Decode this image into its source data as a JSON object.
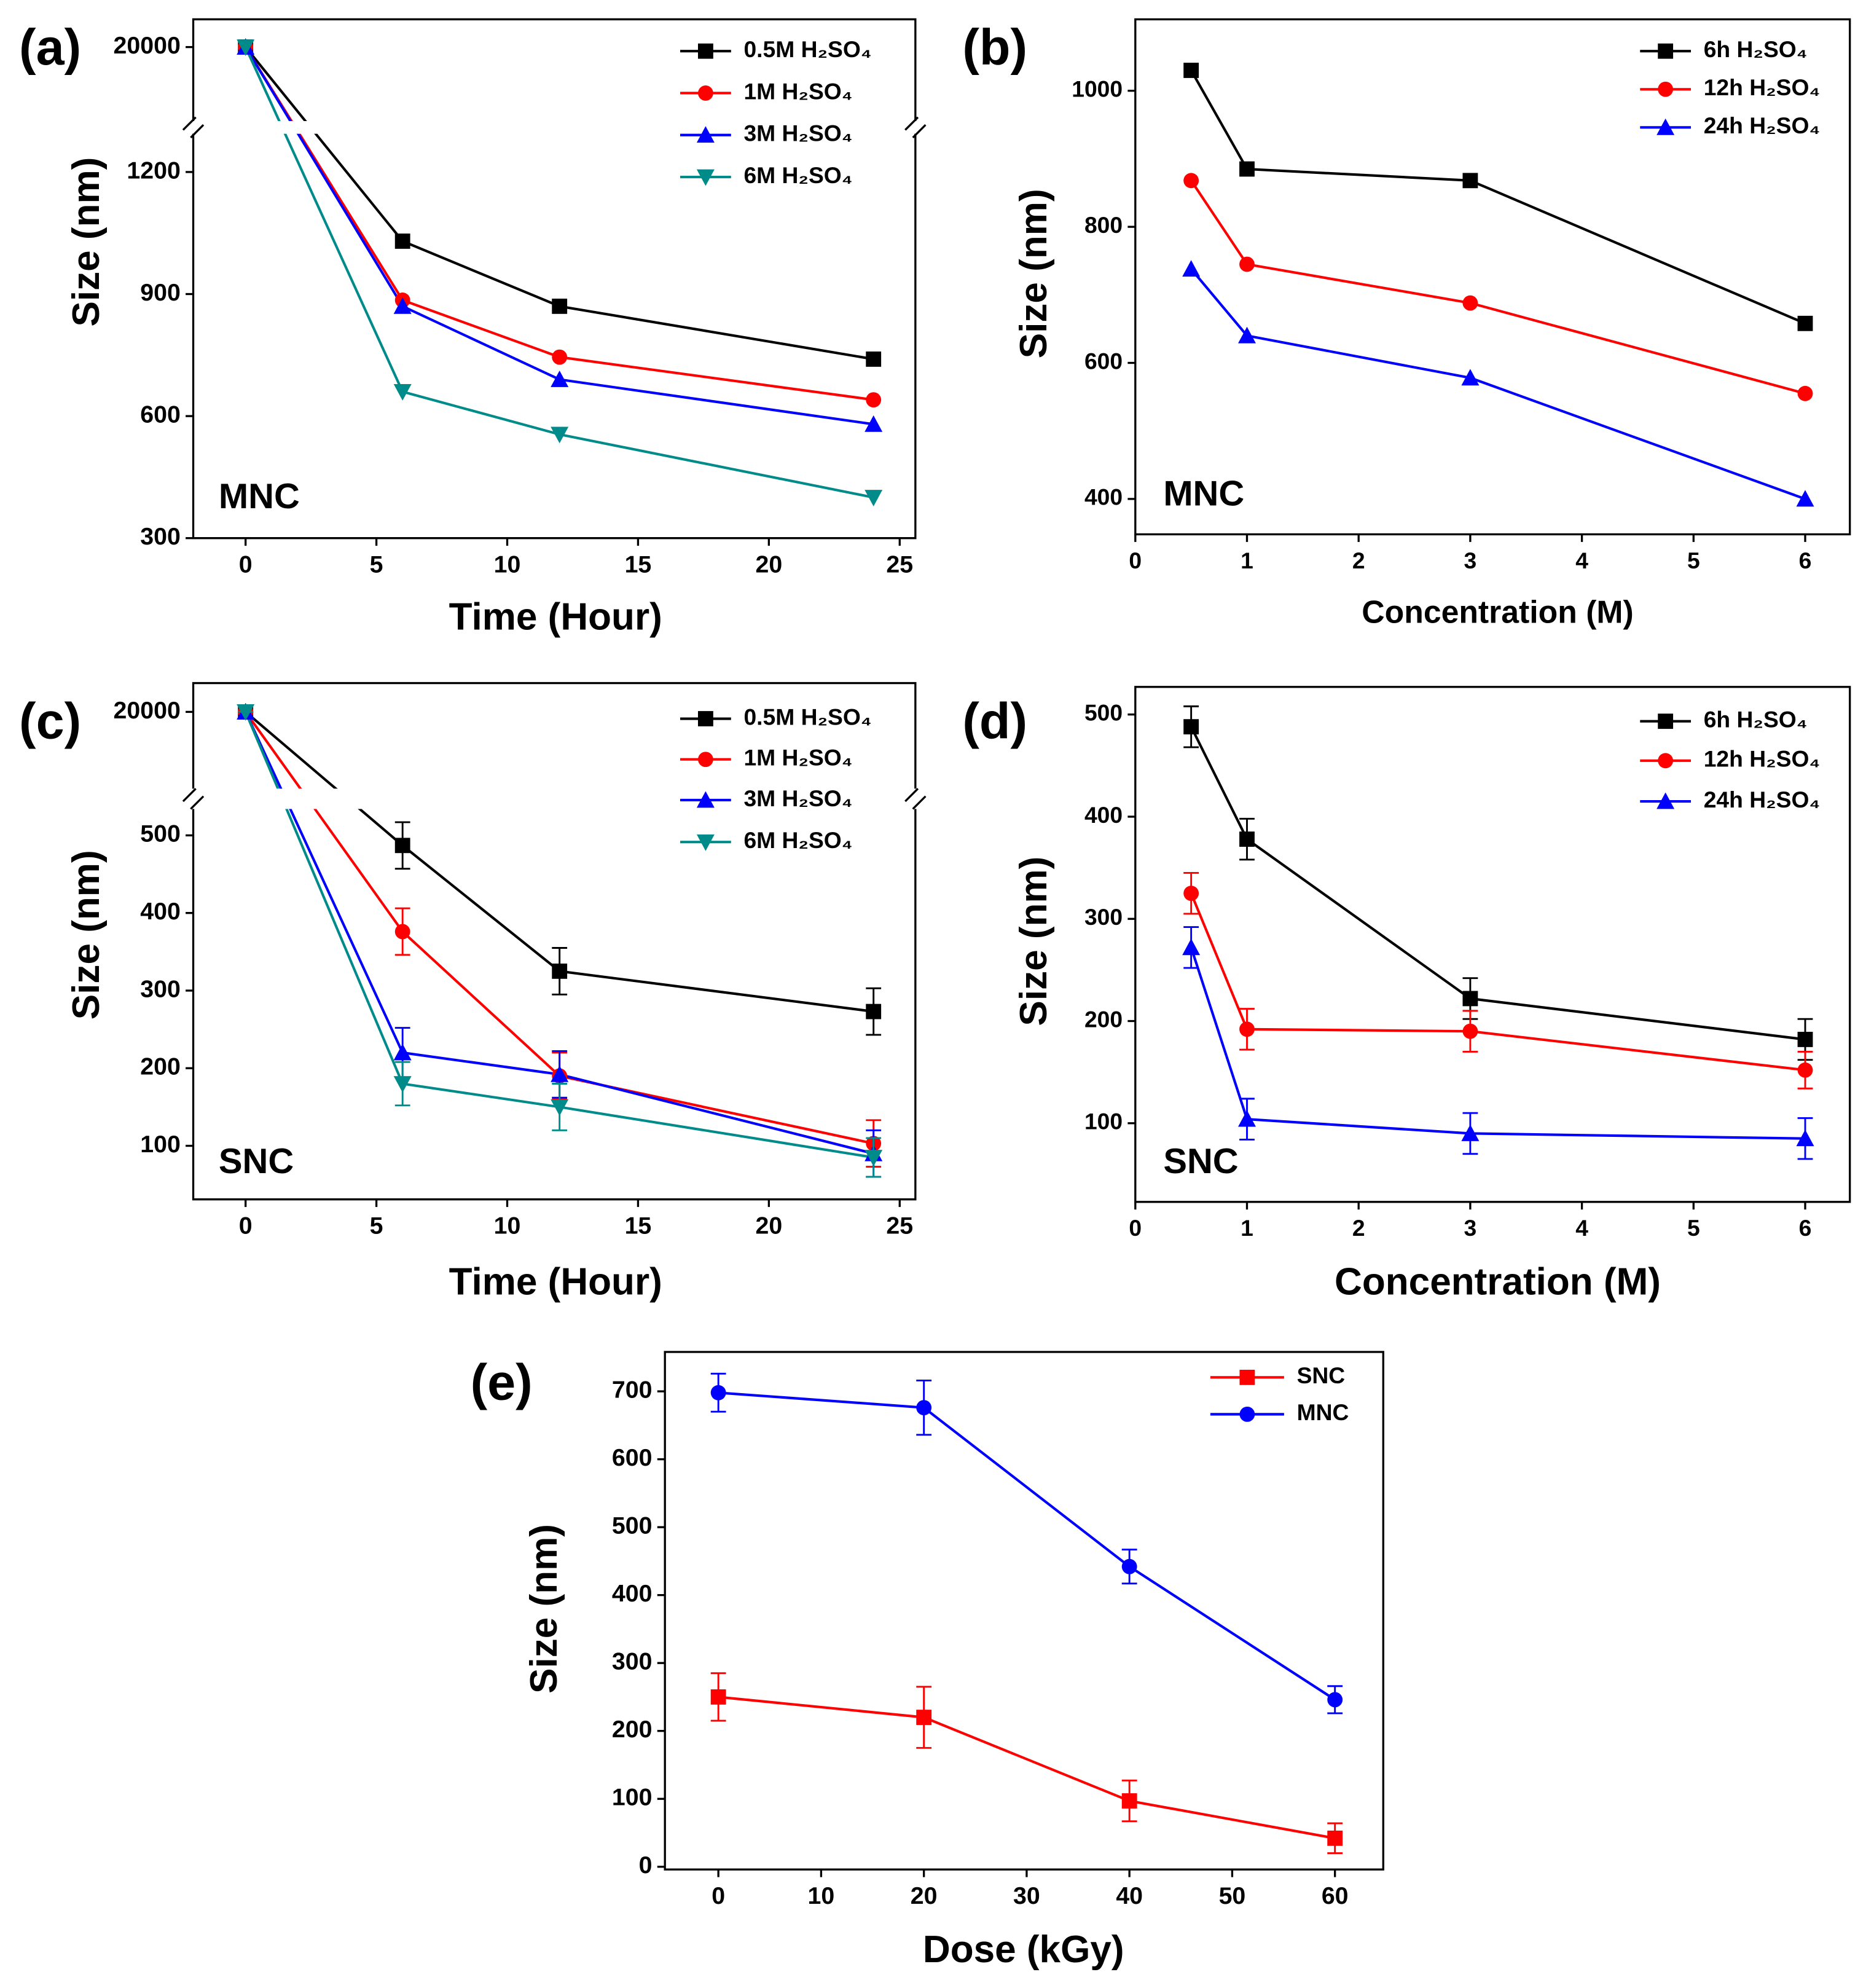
{
  "chart_data": [
    {
      "type": "line",
      "panel_label": "(a)",
      "annotation": "MNC",
      "x_label": "Time (Hour)",
      "y_label": "Size (nm)",
      "x": [
        0,
        6,
        12,
        24
      ],
      "xlim": [
        -2,
        25.6
      ],
      "xticks": [
        0,
        5,
        10,
        15,
        20,
        25
      ],
      "ylim": [
        300,
        1294
      ],
      "yticks": [
        300,
        600,
        900,
        1200
      ],
      "y_break": {
        "ylim": [
          19600,
          20150
        ],
        "yticks": [
          20000
        ]
      },
      "series": [
        {
          "name": "0.5M H₂SO₄",
          "color": "#000000",
          "marker": "square",
          "values": [
            20000,
            1030,
            870,
            740
          ]
        },
        {
          "name": "1M H₂SO₄",
          "color": "#ff0000",
          "marker": "circle",
          "values": [
            20000,
            885,
            745,
            640
          ]
        },
        {
          "name": "3M H₂SO₄",
          "color": "#0000ff",
          "marker": "triangle-up",
          "values": [
            20000,
            870,
            690,
            580
          ]
        },
        {
          "name": "6M H₂SO₄",
          "color": "#008b8b",
          "marker": "triangle-down",
          "values": [
            20000,
            660,
            555,
            400
          ]
        }
      ]
    },
    {
      "type": "line",
      "panel_label": "(b)",
      "annotation": "MNC",
      "x_label": "Concentration (M)",
      "y_label": "Size (nm)",
      "x": [
        0.5,
        1,
        3,
        6
      ],
      "xlim": [
        0,
        6.4
      ],
      "xticks": [
        0,
        1,
        2,
        3,
        4,
        5,
        6
      ],
      "ylim": [
        348,
        1105
      ],
      "yticks": [
        400,
        600,
        800,
        1000
      ],
      "series": [
        {
          "name": "6h H₂SO₄",
          "color": "#000000",
          "marker": "square",
          "values": [
            1030,
            885,
            868,
            658
          ]
        },
        {
          "name": "12h H₂SO₄",
          "color": "#ff0000",
          "marker": "circle",
          "values": [
            868,
            745,
            688,
            555
          ]
        },
        {
          "name": "24h H₂SO₄",
          "color": "#0000ff",
          "marker": "triangle-up",
          "values": [
            738,
            640,
            578,
            400
          ]
        }
      ]
    },
    {
      "type": "line",
      "panel_label": "(c)",
      "annotation": "SNC",
      "x_label": "Time (Hour)",
      "y_label": "Size (nm)",
      "x": [
        0,
        6,
        12,
        24
      ],
      "xlim": [
        -2,
        25.6
      ],
      "xticks": [
        0,
        5,
        10,
        15,
        20,
        25
      ],
      "ylim": [
        31,
        534
      ],
      "yticks": [
        100,
        200,
        300,
        400,
        500
      ],
      "y_break": {
        "ylim": [
          19600,
          20150
        ],
        "yticks": [
          20000
        ]
      },
      "series": [
        {
          "name": "0.5M H₂SO₄",
          "color": "#000000",
          "marker": "square",
          "values": [
            20000,
            487,
            325,
            273
          ],
          "errors": [
            0,
            30,
            30,
            30
          ]
        },
        {
          "name": "1M H₂SO₄",
          "color": "#ff0000",
          "marker": "circle",
          "values": [
            20000,
            376,
            190,
            103
          ],
          "errors": [
            0,
            30,
            30,
            30
          ]
        },
        {
          "name": "3M H₂SO₄",
          "color": "#0000ff",
          "marker": "triangle-up",
          "values": [
            20000,
            220,
            192,
            90
          ],
          "errors": [
            0,
            32,
            30,
            30
          ]
        },
        {
          "name": "6M H₂SO₄",
          "color": "#008b8b",
          "marker": "triangle-down",
          "values": [
            20000,
            180,
            150,
            85
          ],
          "errors": [
            0,
            28,
            30,
            25
          ]
        }
      ]
    },
    {
      "type": "line",
      "panel_label": "(d)",
      "annotation": "SNC",
      "x_label": "Concentration (M)",
      "y_label": "Size (nm)",
      "x": [
        0.5,
        1,
        3,
        6
      ],
      "xlim": [
        0,
        6.4
      ],
      "xticks": [
        0,
        1,
        2,
        3,
        4,
        5,
        6
      ],
      "ylim": [
        23,
        527
      ],
      "yticks": [
        100,
        200,
        300,
        400,
        500
      ],
      "series": [
        {
          "name": "6h H₂SO₄",
          "color": "#000000",
          "marker": "square",
          "values": [
            488,
            378,
            222,
            182
          ],
          "errors": [
            20,
            20,
            20,
            20
          ]
        },
        {
          "name": "12h H₂SO₄",
          "color": "#ff0000",
          "marker": "circle",
          "values": [
            325,
            192,
            190,
            152
          ],
          "errors": [
            20,
            20,
            20,
            18
          ]
        },
        {
          "name": "24h H₂SO₄",
          "color": "#0000ff",
          "marker": "triangle-up",
          "values": [
            272,
            104,
            90,
            85
          ],
          "errors": [
            20,
            20,
            20,
            20
          ]
        }
      ]
    },
    {
      "type": "line",
      "panel_label": "(e)",
      "x_label": "Dose (kGy)",
      "y_label": "Size (nm)",
      "x": [
        0,
        20,
        40,
        60
      ],
      "xlim": [
        -5.2,
        64.7
      ],
      "xticks": [
        0,
        10,
        20,
        30,
        40,
        50,
        60
      ],
      "ylim": [
        -4,
        758
      ],
      "yticks": [
        0,
        100,
        200,
        300,
        400,
        500,
        600,
        700
      ],
      "series": [
        {
          "name": "SNC",
          "color": "#ff0000",
          "marker": "square",
          "values": [
            250,
            220,
            97,
            42
          ],
          "errors": [
            35,
            45,
            30,
            22
          ]
        },
        {
          "name": "MNC",
          "color": "#0000ff",
          "marker": "circle",
          "values": [
            698,
            676,
            442,
            246
          ],
          "errors": [
            28,
            40,
            25,
            20
          ]
        }
      ]
    }
  ]
}
